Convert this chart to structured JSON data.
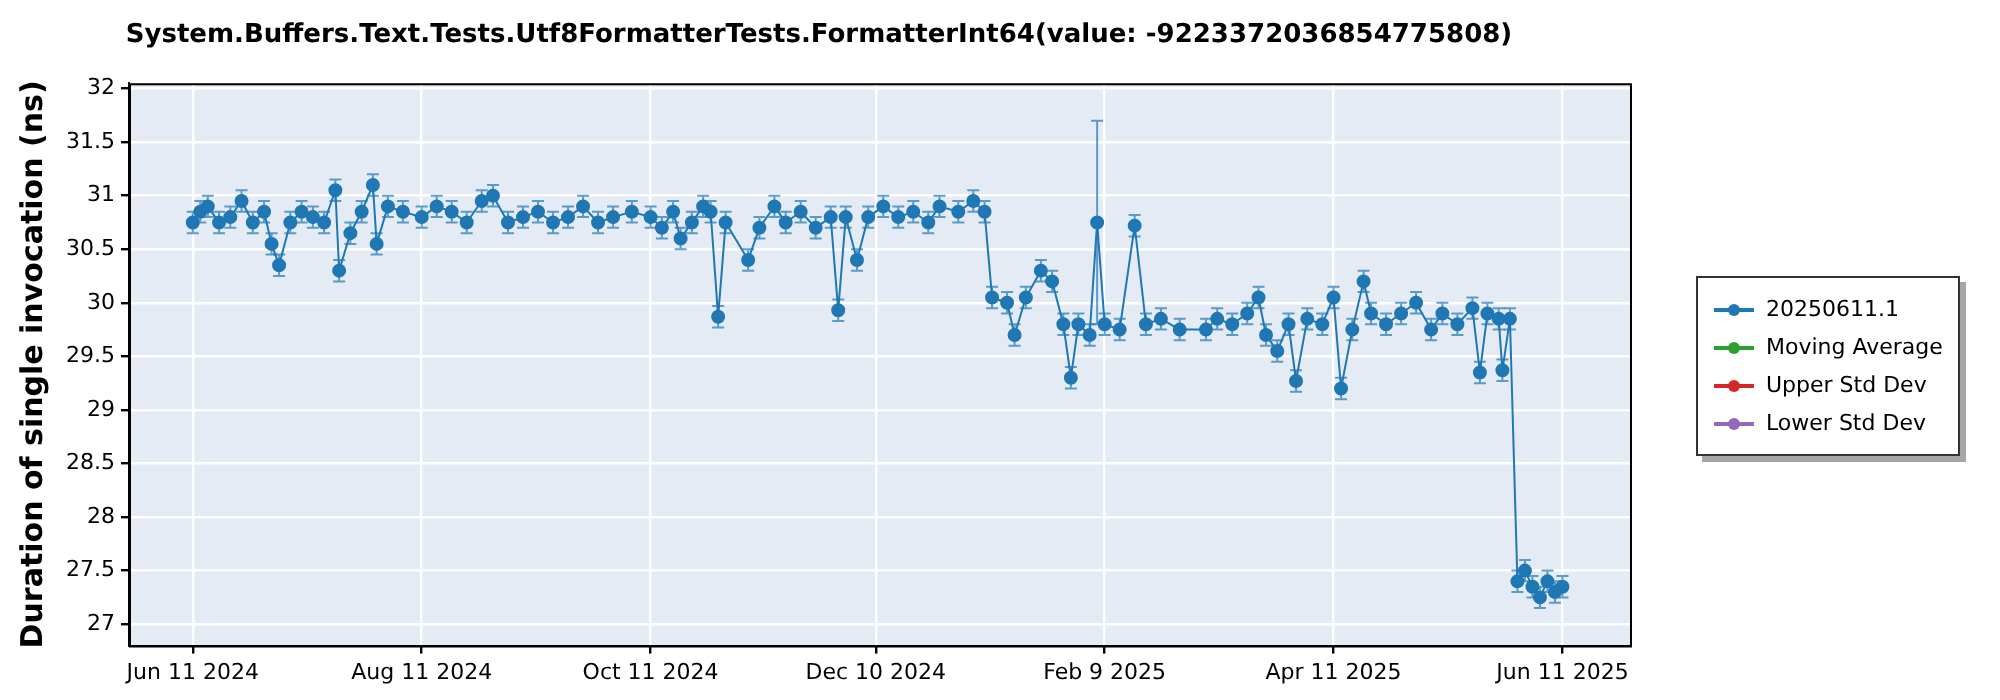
{
  "chart_data": {
    "type": "line",
    "title": "System.Buffers.Text.Tests.Utf8FormatterTests.FormatterInt64(value: -9223372036854775808)",
    "ylabel": "Duration of single invocation (ns)",
    "xlim": [
      "2024-05-25",
      "2025-06-29"
    ],
    "xticks": [
      {
        "value": "2024-06-11",
        "label": "Jun 11 2024"
      },
      {
        "value": "2024-08-11",
        "label": "Aug 11 2024"
      },
      {
        "value": "2024-10-11",
        "label": "Oct 11 2024"
      },
      {
        "value": "2024-12-10",
        "label": "Dec 10 2024"
      },
      {
        "value": "2025-02-09",
        "label": "Feb 9 2025"
      },
      {
        "value": "2025-04-11",
        "label": "Apr 11 2025"
      },
      {
        "value": "2025-06-11",
        "label": "Jun 11 2025"
      }
    ],
    "ylim": [
      26.8,
      32.05
    ],
    "yticks": [
      27,
      27.5,
      28,
      28.5,
      29,
      29.5,
      30,
      30.5,
      31,
      31.5,
      32
    ],
    "grid": true,
    "legend": "right",
    "marker": "circle",
    "series": [
      {
        "name": "20250611.1",
        "color": "#1f77b4",
        "x": [
          "2024-06-11",
          "2024-06-13",
          "2024-06-15",
          "2024-06-18",
          "2024-06-21",
          "2024-06-24",
          "2024-06-27",
          "2024-06-30",
          "2024-07-02",
          "2024-07-04",
          "2024-07-07",
          "2024-07-10",
          "2024-07-13",
          "2024-07-16",
          "2024-07-19",
          "2024-07-20",
          "2024-07-23",
          "2024-07-26",
          "2024-07-29",
          "2024-07-30",
          "2024-08-02",
          "2024-08-06",
          "2024-08-11",
          "2024-08-15",
          "2024-08-19",
          "2024-08-23",
          "2024-08-27",
          "2024-08-30",
          "2024-09-03",
          "2024-09-07",
          "2024-09-11",
          "2024-09-15",
          "2024-09-19",
          "2024-09-23",
          "2024-09-27",
          "2024-10-01",
          "2024-10-06",
          "2024-10-11",
          "2024-10-14",
          "2024-10-17",
          "2024-10-19",
          "2024-10-22",
          "2024-10-25",
          "2024-10-27",
          "2024-10-29",
          "2024-10-31",
          "2024-11-06",
          "2024-11-09",
          "2024-11-13",
          "2024-11-16",
          "2024-11-20",
          "2024-11-24",
          "2024-11-28",
          "2024-11-30",
          "2024-12-02",
          "2024-12-05",
          "2024-12-08",
          "2024-12-12",
          "2024-12-16",
          "2024-12-20",
          "2024-12-24",
          "2024-12-27",
          "2025-01-01",
          "2025-01-05",
          "2025-01-08",
          "2025-01-10",
          "2025-01-14",
          "2025-01-16",
          "2025-01-19",
          "2025-01-23",
          "2025-01-26",
          "2025-01-29",
          "2025-01-31",
          "2025-02-02",
          "2025-02-05",
          "2025-02-07",
          "2025-02-09",
          "2025-02-13",
          "2025-02-17",
          "2025-02-20",
          "2025-02-24",
          "2025-03-01",
          "2025-03-08",
          "2025-03-11",
          "2025-03-15",
          "2025-03-19",
          "2025-03-22",
          "2025-03-24",
          "2025-03-27",
          "2025-03-30",
          "2025-04-01",
          "2025-04-04",
          "2025-04-08",
          "2025-04-11",
          "2025-04-13",
          "2025-04-16",
          "2025-04-19",
          "2025-04-21",
          "2025-04-25",
          "2025-04-29",
          "2025-05-03",
          "2025-05-07",
          "2025-05-10",
          "2025-05-14",
          "2025-05-18",
          "2025-05-20",
          "2025-05-22",
          "2025-05-25",
          "2025-05-26",
          "2025-05-28",
          "2025-05-30",
          "2025-06-01",
          "2025-06-03",
          "2025-06-05",
          "2025-06-07",
          "2025-06-09",
          "2025-06-11"
        ],
        "values": [
          30.75,
          30.85,
          30.9,
          30.75,
          30.8,
          30.95,
          30.75,
          30.85,
          30.55,
          30.35,
          30.75,
          30.85,
          30.8,
          30.75,
          31.05,
          30.3,
          30.65,
          30.85,
          31.1,
          30.55,
          30.9,
          30.85,
          30.8,
          30.9,
          30.85,
          30.75,
          30.95,
          31.0,
          30.75,
          30.8,
          30.85,
          30.75,
          30.8,
          30.9,
          30.75,
          30.8,
          30.85,
          30.8,
          30.7,
          30.85,
          30.6,
          30.75,
          30.9,
          30.85,
          29.87,
          30.75,
          30.4,
          30.7,
          30.9,
          30.75,
          30.85,
          30.7,
          30.8,
          29.93,
          30.8,
          30.4,
          30.8,
          30.9,
          30.8,
          30.85,
          30.75,
          30.9,
          30.85,
          30.95,
          30.85,
          30.05,
          30.0,
          29.7,
          30.05,
          30.3,
          30.2,
          29.8,
          29.3,
          29.8,
          29.7,
          30.75,
          29.8,
          29.75,
          30.72,
          29.8,
          29.85,
          29.75,
          29.75,
          29.85,
          29.8,
          29.9,
          30.05,
          29.7,
          29.55,
          29.8,
          29.27,
          29.85,
          29.8,
          30.05,
          29.2,
          29.75,
          30.2,
          29.9,
          29.8,
          29.9,
          30.0,
          29.75,
          29.9,
          29.8,
          29.95,
          29.35,
          29.9,
          29.85,
          29.37,
          29.85,
          27.4,
          27.5,
          27.35,
          27.25,
          27.4,
          27.3,
          27.35
        ],
        "errors": [
          0.1,
          0.1,
          0.1,
          0.1,
          0.1,
          0.1,
          0.1,
          0.1,
          0.1,
          0.1,
          0.1,
          0.1,
          0.1,
          0.1,
          0.1,
          0.1,
          0.1,
          0.1,
          0.1,
          0.1,
          0.1,
          0.1,
          0.1,
          0.1,
          0.1,
          0.1,
          0.1,
          0.1,
          0.1,
          0.1,
          0.1,
          0.1,
          0.1,
          0.1,
          0.1,
          0.1,
          0.1,
          0.1,
          0.1,
          0.1,
          0.1,
          0.1,
          0.1,
          0.1,
          0.1,
          0.1,
          0.1,
          0.1,
          0.1,
          0.1,
          0.1,
          0.1,
          0.1,
          0.1,
          0.1,
          0.1,
          0.1,
          0.1,
          0.1,
          0.1,
          0.1,
          0.1,
          0.1,
          0.1,
          0.1,
          0.1,
          0.1,
          0.1,
          0.1,
          0.1,
          0.1,
          0.1,
          0.1,
          0.1,
          0.1,
          0.95,
          0.1,
          0.1,
          0.1,
          0.1,
          0.1,
          0.1,
          0.1,
          0.1,
          0.1,
          0.1,
          0.1,
          0.1,
          0.1,
          0.1,
          0.1,
          0.1,
          0.1,
          0.1,
          0.1,
          0.1,
          0.1,
          0.1,
          0.1,
          0.1,
          0.1,
          0.1,
          0.1,
          0.1,
          0.1,
          0.1,
          0.1,
          0.1,
          0.1,
          0.1,
          0.1,
          0.1,
          0.1,
          0.1,
          0.1,
          0.1,
          0.1
        ]
      },
      {
        "name": "Moving Average",
        "color": "#2ca02c"
      },
      {
        "name": "Upper Std Dev",
        "color": "#d62728"
      },
      {
        "name": "Lower Std Dev",
        "color": "#9467bd"
      }
    ]
  }
}
